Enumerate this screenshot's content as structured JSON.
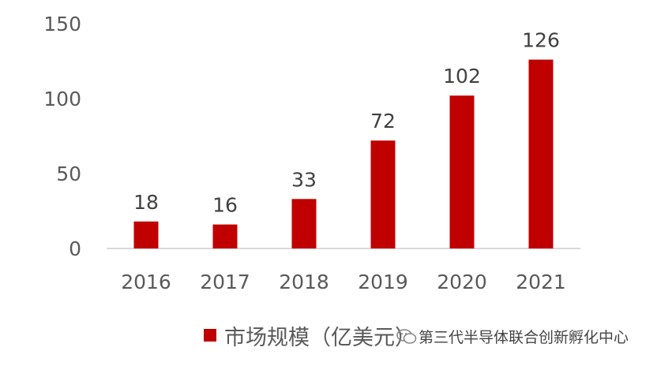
{
  "chart_data": {
    "type": "bar",
    "categories": [
      "2016",
      "2017",
      "2018",
      "2019",
      "2020",
      "2021"
    ],
    "series": [
      {
        "name": "市场规模（亿美元）",
        "values": [
          18,
          16,
          33,
          72,
          102,
          126
        ],
        "color": "#C00000"
      }
    ],
    "ylim": [
      0,
      150
    ],
    "yticks": [
      0,
      50,
      100,
      150
    ],
    "grid": false,
    "legend_position": "bottom",
    "data_labels": true
  },
  "legend": {
    "label": "市场规模（亿美元）"
  },
  "watermark": {
    "text": "第三代半导体联合创新孵化中心",
    "icon": "wechat-icon"
  }
}
